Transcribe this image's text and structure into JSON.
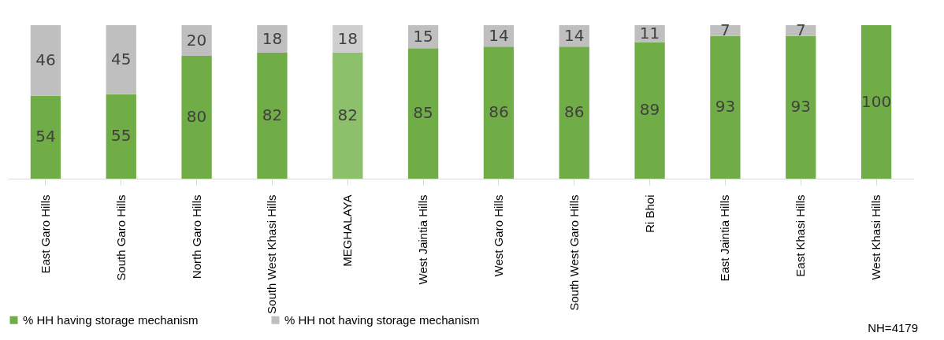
{
  "chart_data": {
    "type": "bar",
    "stacked": true,
    "data_labels": true,
    "tick_labels": "x",
    "grid": false,
    "legend": "bottom",
    "categories": [
      "East Garo Hills",
      "South Garo Hills",
      "North Garo Hills",
      "South West Khasi Hills",
      "MEGHALAYA",
      "West Jaintia Hills",
      "West Garo Hills",
      "South West Garo Hills",
      "Ri Bhoi",
      "East Jaintia Hills",
      "East Khasi Hills",
      "West Khasi Hills"
    ],
    "ylim": [
      0,
      100
    ],
    "series": [
      {
        "name": "% HH having storage mechanism",
        "color": "#70ad47",
        "colors": [
          "#70ad47",
          "#70ad47",
          "#70ad47",
          "#70ad47",
          "#8dc06b",
          "#70ad47",
          "#70ad47",
          "#70ad47",
          "#70ad47",
          "#70ad47",
          "#70ad47",
          "#70ad47"
        ],
        "values": [
          54,
          55,
          80,
          82,
          82,
          85,
          86,
          86,
          89,
          93,
          93,
          100
        ]
      },
      {
        "name": "% HH not having storage mechanism",
        "color": "#bfbfbf",
        "colors": [
          "#bfbfbf",
          "#bfbfbf",
          "#bfbfbf",
          "#bfbfbf",
          "#cfcfcf",
          "#bfbfbf",
          "#bfbfbf",
          "#bfbfbf",
          "#bfbfbf",
          "#bfbfbf",
          "#bfbfbf",
          "#bfbfbf"
        ],
        "values": [
          46,
          45,
          20,
          18,
          18,
          15,
          14,
          14,
          11,
          7,
          7,
          null
        ]
      }
    ],
    "annotations": [
      "NH=4179"
    ]
  }
}
